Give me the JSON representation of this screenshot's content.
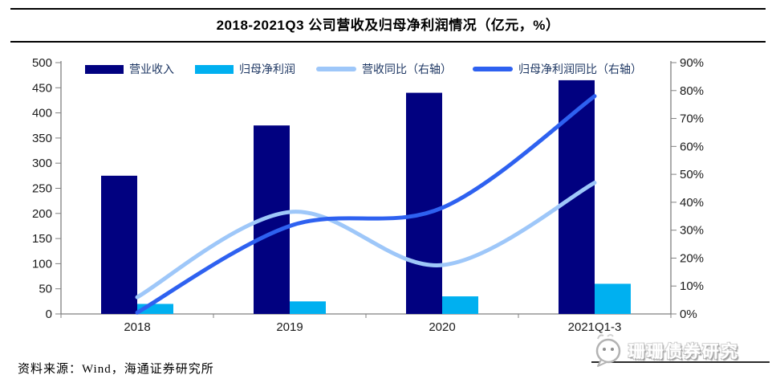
{
  "title": "2018-2021Q3 公司营收及归母净利润情况（亿元，%）",
  "footer": {
    "source": "资料来源：Wind，海通证券研究所"
  },
  "watermark": {
    "text": "珊珊债券研究",
    "icon": "wechat-face-icon"
  },
  "colors": {
    "revenue_bar": "#010180",
    "profit_bar": "#00B0F0",
    "revenue_yoy_line": "#9EC7F9",
    "profit_yoy_line": "#2E61F0",
    "axis": "#808080",
    "legend_text": "#1F3864",
    "title_text": "#000000"
  },
  "chart_data": {
    "type": "bar+line combo",
    "title": "2018-2021Q3 公司营收及归母净利润情况（亿元，%）",
    "categories": [
      "2018",
      "2019",
      "2020",
      "2021Q1-3"
    ],
    "series": [
      {
        "name": "营业收入",
        "type": "bar",
        "axis": "left",
        "color": "#010180",
        "values": [
          275,
          375,
          440,
          465
        ]
      },
      {
        "name": "归母净利润",
        "type": "bar",
        "axis": "left",
        "color": "#00B0F0",
        "values": [
          20,
          25,
          35,
          60
        ]
      },
      {
        "name": "营收同比（右轴）",
        "type": "line",
        "axis": "right",
        "color": "#9EC7F9",
        "values": [
          6,
          36.5,
          17.5,
          47
        ]
      },
      {
        "name": "归母净利润同比（右轴）",
        "type": "line",
        "axis": "right",
        "color": "#2E61F0",
        "values": [
          0.5,
          31.5,
          38,
          78
        ]
      }
    ],
    "left_axis": {
      "min": 0,
      "max": 500,
      "step": 50,
      "tick_labels": [
        "0",
        "50",
        "100",
        "150",
        "200",
        "250",
        "300",
        "350",
        "400",
        "450",
        "500"
      ]
    },
    "right_axis": {
      "min": 0,
      "max": 90,
      "step": 10,
      "tick_labels": [
        "0%",
        "10%",
        "20%",
        "30%",
        "40%",
        "50%",
        "60%",
        "70%",
        "80%",
        "90%"
      ]
    },
    "legend_position": "top",
    "grid": false
  }
}
